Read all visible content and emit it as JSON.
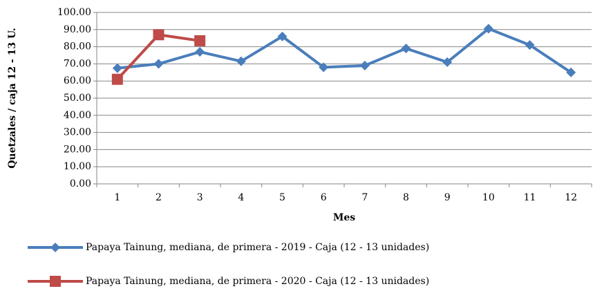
{
  "chart_data": {
    "type": "line",
    "y_label": "Quetzales / caja 12 - 13 U.",
    "x_label": "Mes",
    "categories": [
      "1",
      "2",
      "3",
      "4",
      "5",
      "6",
      "7",
      "8",
      "9",
      "10",
      "11",
      "12"
    ],
    "series": [
      {
        "name": "Papaya Tainung, mediana, de primera - 2019 - Caja (12 - 13 unidades)",
        "color": "#4a7ebb",
        "marker": "diamond",
        "values": [
          67.5,
          70,
          77,
          71.5,
          86,
          68,
          69,
          79,
          71,
          90.5,
          81,
          65
        ]
      },
      {
        "name": "Papaya Tainung, mediana, de primera - 2020 - Caja (12 - 13 unidades)",
        "color": "#be4b48",
        "marker": "square",
        "values": [
          61,
          87,
          83.5,
          null,
          null,
          null,
          null,
          null,
          null,
          null,
          null,
          null
        ]
      }
    ],
    "ylim": [
      0,
      100
    ],
    "yticks": [
      {
        "value": 0,
        "label": "0.00"
      },
      {
        "value": 10,
        "label": "10.00"
      },
      {
        "value": 20,
        "label": "20.00"
      },
      {
        "value": 30,
        "label": "30.00"
      },
      {
        "value": 40,
        "label": "40.00"
      },
      {
        "value": 50,
        "label": "50.00"
      },
      {
        "value": 60,
        "label": "60.00"
      },
      {
        "value": 70,
        "label": "70.00"
      },
      {
        "value": 80,
        "label": "80.00"
      },
      {
        "value": 90,
        "label": "90.00"
      },
      {
        "value": 100,
        "label": "100.00"
      }
    ],
    "grid": true
  }
}
